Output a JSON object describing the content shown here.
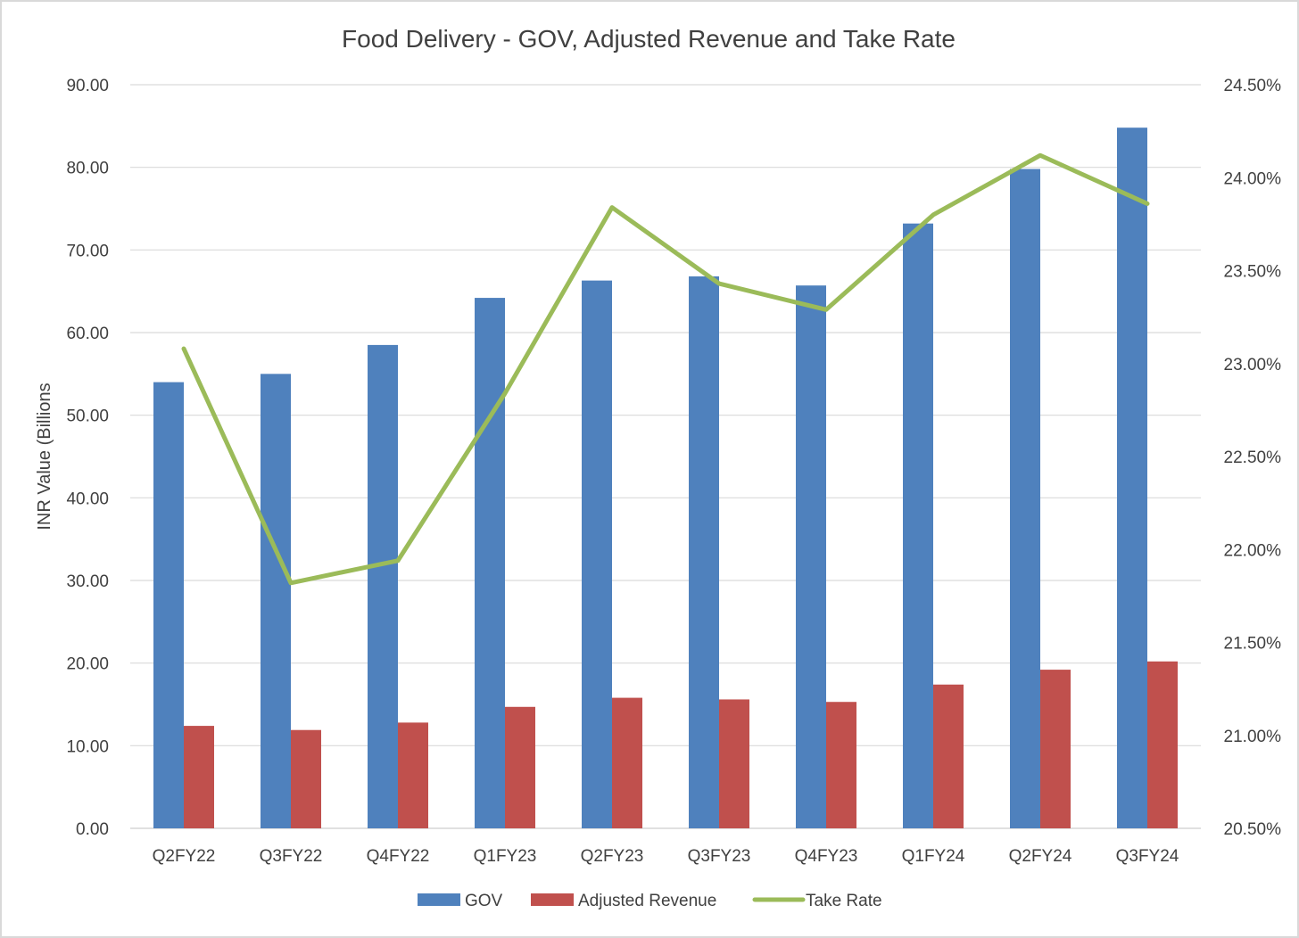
{
  "chart_data": {
    "type": "bar",
    "title": "Food Delivery - GOV, Adjusted Revenue and Take Rate",
    "ylabel": "INR Value (Billions",
    "xlabel": "",
    "categories": [
      "Q2FY22",
      "Q3FY22",
      "Q4FY22",
      "Q1FY23",
      "Q2FY23",
      "Q3FY23",
      "Q4FY23",
      "Q1FY24",
      "Q2FY24",
      "Q3FY24"
    ],
    "series": [
      {
        "name": "GOV",
        "type": "bar",
        "axis": "left",
        "color": "#4f81bd",
        "values": [
          54.0,
          55.0,
          58.5,
          64.2,
          66.3,
          66.8,
          65.7,
          73.2,
          79.8,
          84.8
        ]
      },
      {
        "name": "Adjusted Revenue",
        "type": "bar",
        "axis": "left",
        "color": "#c0504d",
        "values": [
          12.4,
          11.9,
          12.8,
          14.7,
          15.8,
          15.6,
          15.3,
          17.4,
          19.2,
          20.2
        ]
      },
      {
        "name": "Take Rate",
        "type": "line",
        "axis": "right",
        "color": "#9bbb59",
        "values": [
          23.08,
          21.82,
          21.94,
          22.84,
          23.84,
          23.43,
          23.29,
          23.8,
          24.12,
          23.86
        ]
      }
    ],
    "ylim": [
      0,
      90
    ],
    "y_ticks": [
      "0.00",
      "10.00",
      "20.00",
      "30.00",
      "40.00",
      "50.00",
      "60.00",
      "70.00",
      "80.00",
      "90.00"
    ],
    "y2lim": [
      20.5,
      24.5
    ],
    "y2_ticks": [
      "20.50%",
      "21.00%",
      "21.50%",
      "22.00%",
      "22.50%",
      "23.00%",
      "23.50%",
      "24.00%",
      "24.50%"
    ],
    "grid": true,
    "legend_position": "bottom"
  }
}
